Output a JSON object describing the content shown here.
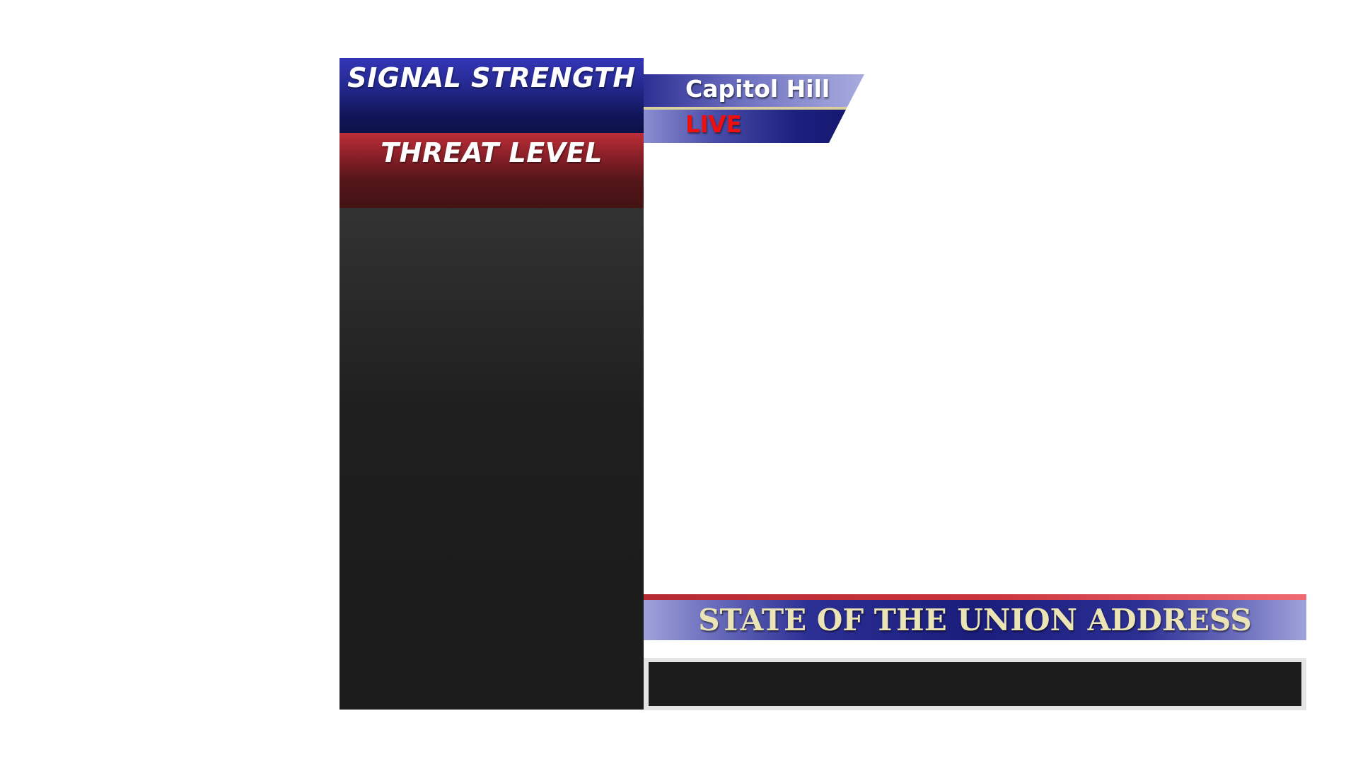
{
  "left_panel": {
    "signal_title": "SIGNAL STRENGTH",
    "threat_title": "THREAT LEVEL"
  },
  "location_tag": {
    "location": "Capitol Hill",
    "status": "LIVE"
  },
  "lower_third": {
    "headline": "STATE OF THE UNION ADDRESS"
  },
  "colors": {
    "signal_blue": "#252a92",
    "threat_red": "#8a2028",
    "live_red": "#ee0f0f",
    "headline_gold": "#ebe4b4",
    "panel_dark": "#1b1b1b",
    "tag_gold_line": "#d8cf9c"
  }
}
